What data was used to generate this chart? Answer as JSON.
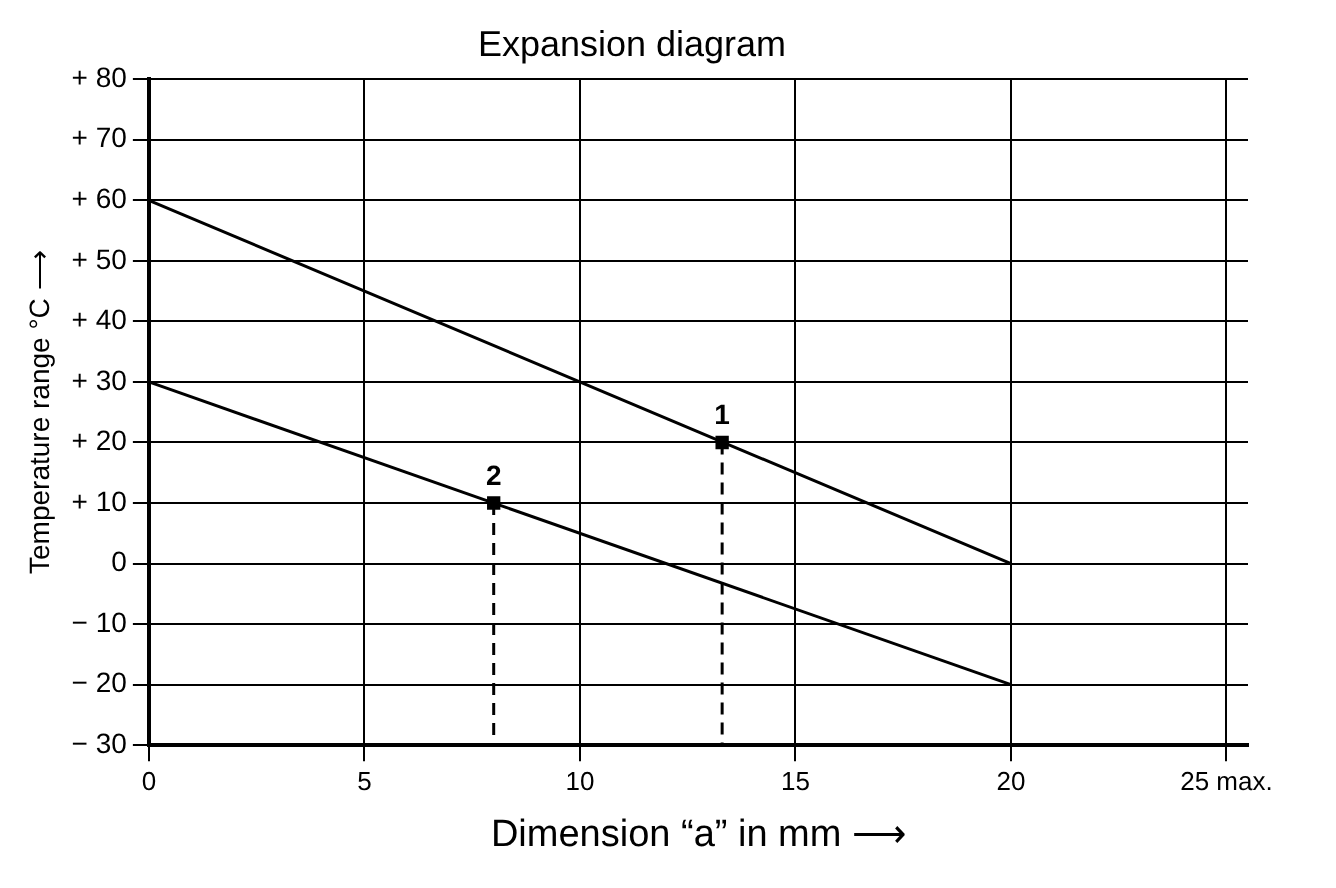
{
  "chart_data": {
    "type": "line",
    "title": "Expansion diagram",
    "xlabel": "Dimension “a” in mm ⟶",
    "ylabel": "Temperature range °C ⟶",
    "xlim": [
      0,
      25.5
    ],
    "xticks": [
      0,
      5,
      10,
      15,
      20,
      {
        "value": 25,
        "label": "25 max."
      }
    ],
    "ylim": [
      -30,
      80
    ],
    "yticks": [
      {
        "value": 80,
        "label": "+ 80"
      },
      {
        "value": 70,
        "label": "+ 70"
      },
      {
        "value": 60,
        "label": "+ 60"
      },
      {
        "value": 50,
        "label": "+ 50"
      },
      {
        "value": 40,
        "label": "+ 40"
      },
      {
        "value": 30,
        "label": "+ 30"
      },
      {
        "value": 20,
        "label": "+ 20"
      },
      {
        "value": 10,
        "label": "+ 10"
      },
      0,
      {
        "value": -10,
        "label": "− 10"
      },
      {
        "value": -20,
        "label": "− 20"
      },
      {
        "value": -30,
        "label": "− 30"
      }
    ],
    "grid": true,
    "marker": "none",
    "line_style": "solid",
    "series": [
      {
        "color": "#000000",
        "x": [
          0,
          20
        ],
        "values": [
          60,
          0
        ]
      },
      {
        "color": "#000000",
        "x": [
          0,
          20
        ],
        "values": [
          30,
          -20
        ]
      },
      {
        "type": "line",
        "color": "#000000",
        "line_style": "dashed",
        "x": [
          13.3,
          13.3
        ],
        "values": [
          20,
          -30
        ]
      },
      {
        "type": "line",
        "color": "#000000",
        "line_style": "dashed",
        "x": [
          8,
          8
        ],
        "values": [
          10,
          -30
        ]
      },
      {
        "type": "scatter",
        "color": "#000000",
        "marker": "square",
        "x": [
          13.3,
          8
        ],
        "values": [
          20,
          10
        ]
      }
    ],
    "annotations": [
      {
        "text": "1",
        "x": 13.3,
        "y": 20
      },
      {
        "text": "2",
        "x": 8,
        "y": 10
      }
    ]
  }
}
